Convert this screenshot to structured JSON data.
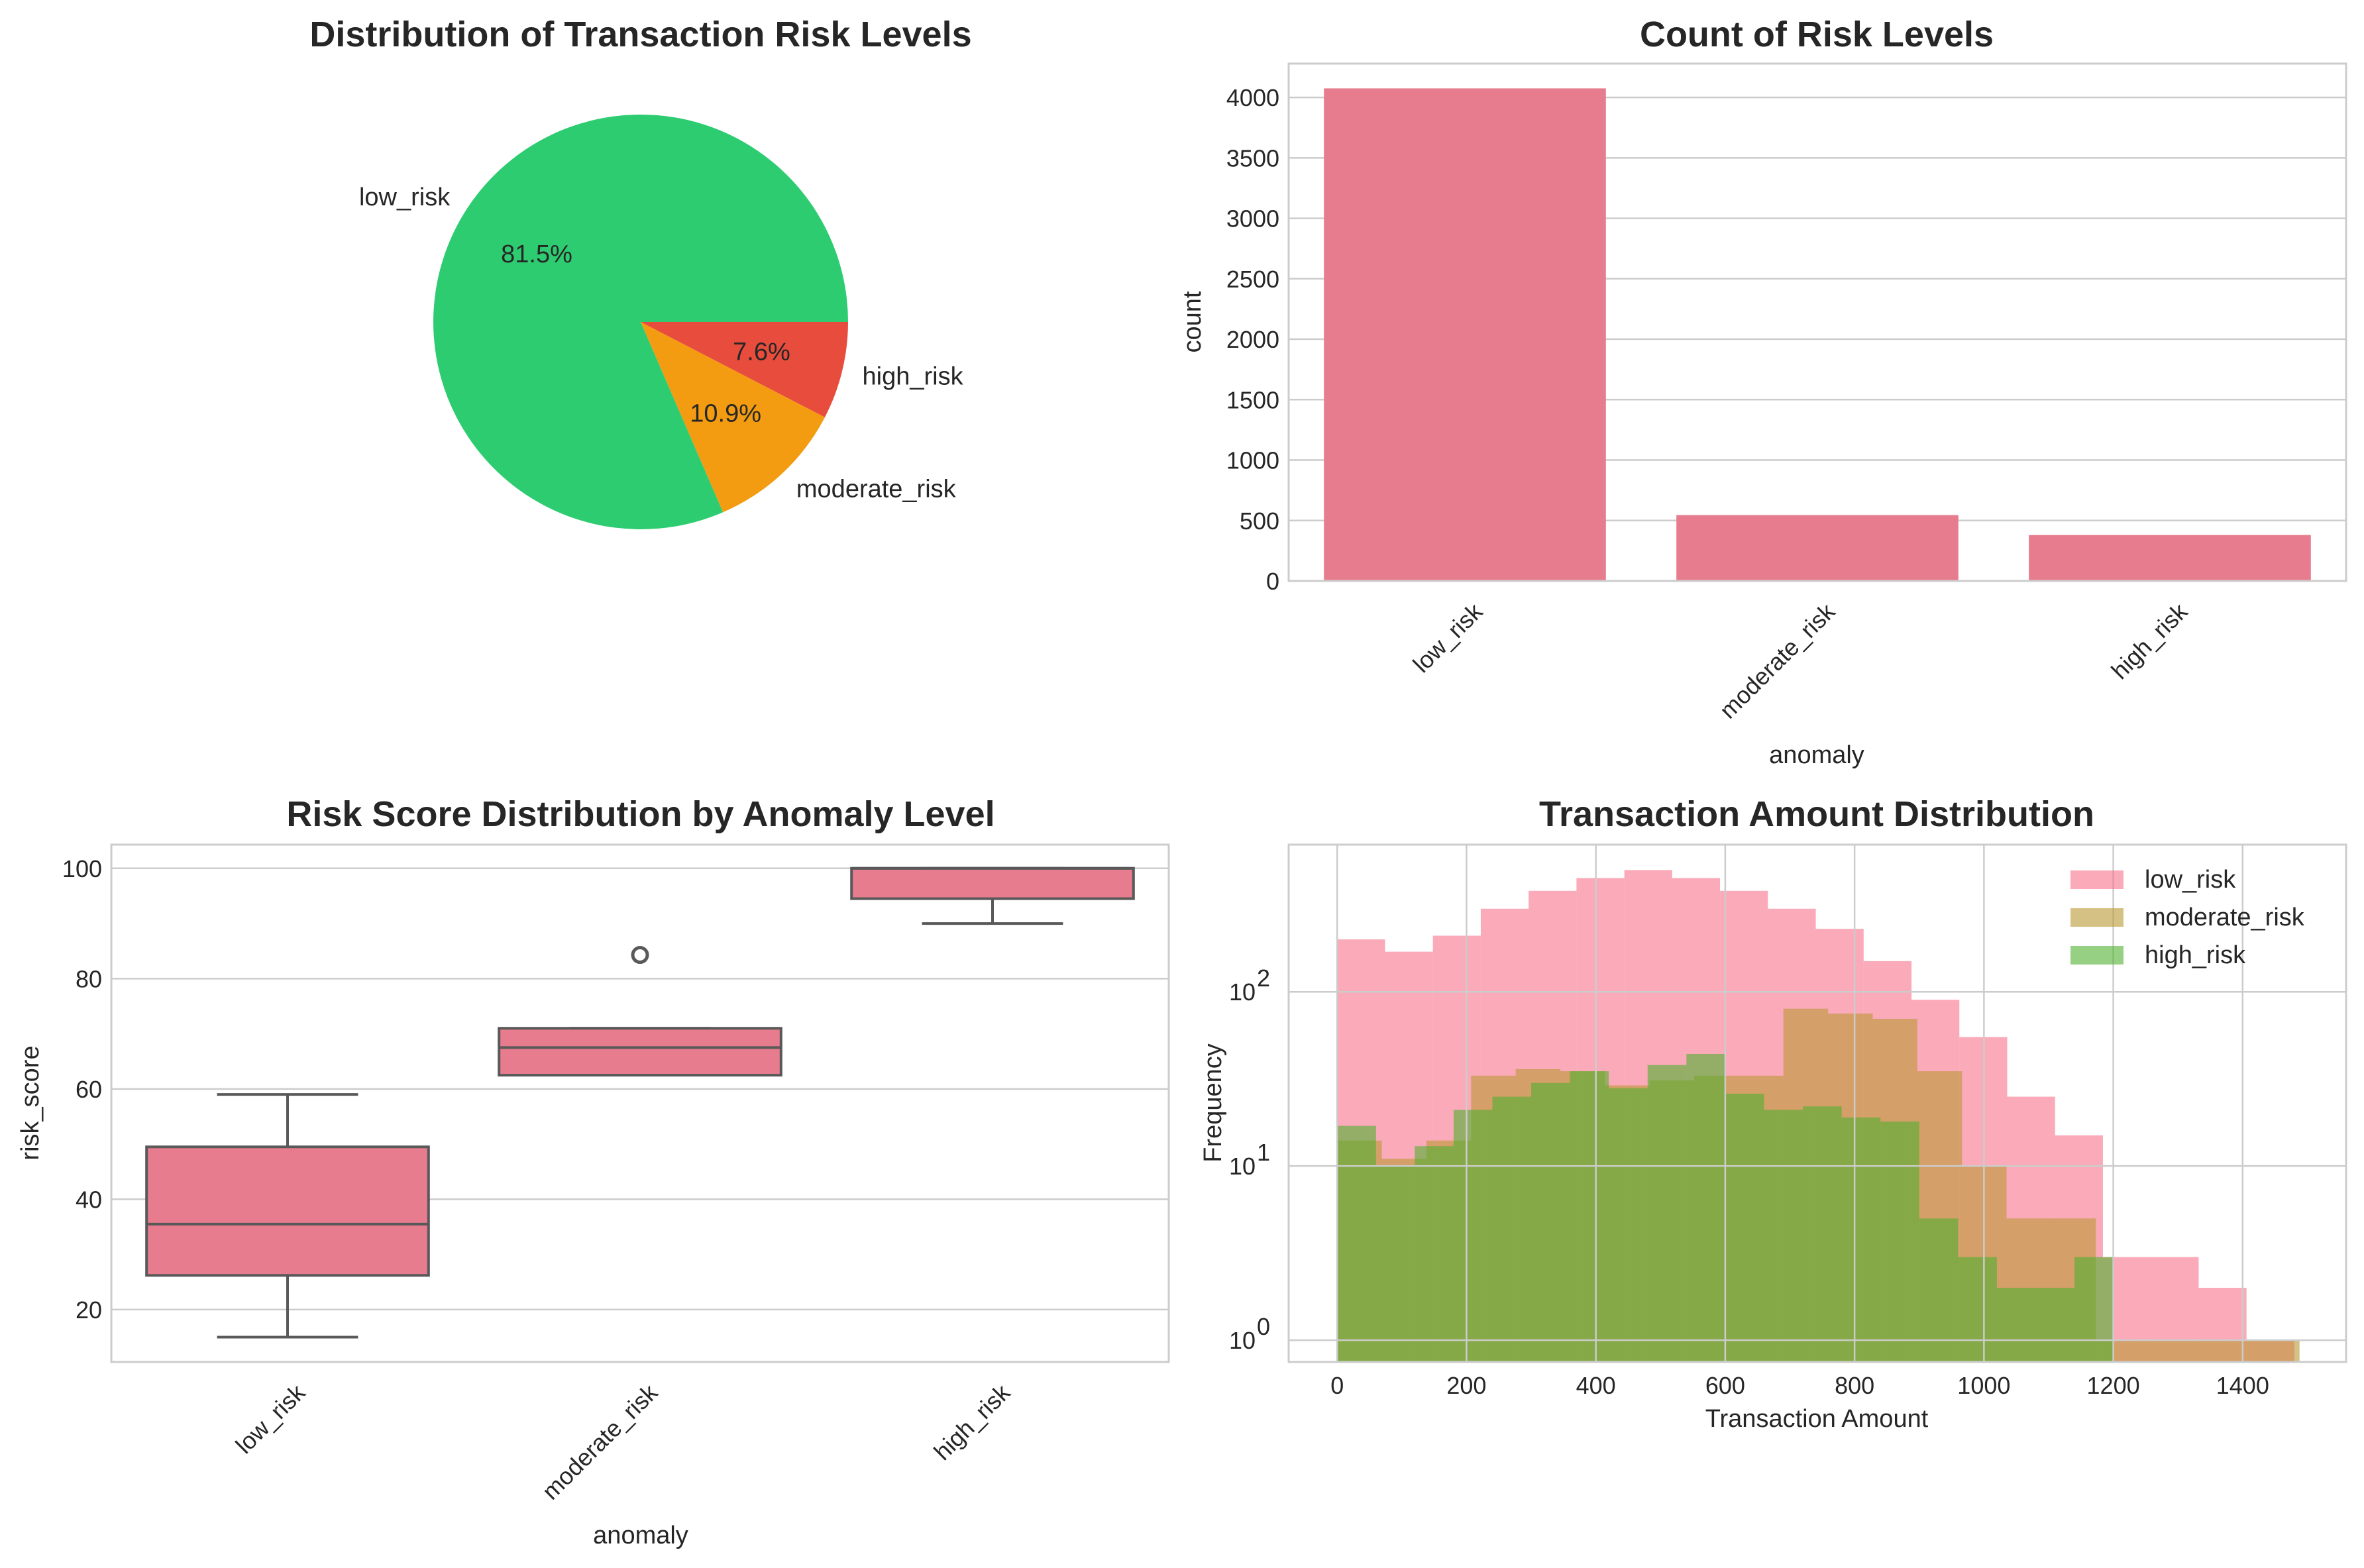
{
  "chart_data": [
    {
      "type": "pie",
      "title": "Distribution of Transaction Risk Levels",
      "slices": [
        {
          "label": "low_risk",
          "value": 81.5,
          "pct_label": "81.5%",
          "color": "#2ecc71"
        },
        {
          "label": "moderate_risk",
          "value": 10.9,
          "pct_label": "10.9%",
          "color": "#f39c12"
        },
        {
          "label": "high_risk",
          "value": 7.6,
          "pct_label": "7.6%",
          "color": "#e74c3c"
        }
      ]
    },
    {
      "type": "bar",
      "title": "Count of Risk Levels",
      "categories": [
        "low_risk",
        "moderate_risk",
        "high_risk"
      ],
      "values": [
        4075,
        545,
        380
      ],
      "xlabel": "anomaly",
      "ylabel": "count",
      "ylim": [
        0,
        4280
      ],
      "yticks": [
        0,
        500,
        1000,
        1500,
        2000,
        2500,
        3000,
        3500,
        4000
      ],
      "color": "#e77c8e",
      "grid": "y"
    },
    {
      "type": "box",
      "title": "Risk Score Distribution by Anomaly Level",
      "categories": [
        "low_risk",
        "moderate_risk",
        "high_risk"
      ],
      "boxes": [
        {
          "whislo": 15,
          "q1": 26.2,
          "med": 35.5,
          "q3": 49.5,
          "whishi": 59,
          "fliers": []
        },
        {
          "whislo": 62.5,
          "q1": 62.5,
          "med": 67.5,
          "q3": 71,
          "whishi": 71,
          "fliers": [
            84.3
          ]
        },
        {
          "whislo": 90,
          "q1": 94.5,
          "med": 100,
          "q3": 100,
          "whishi": 100,
          "fliers": []
        }
      ],
      "xlabel": "anomaly",
      "ylabel": "risk_score",
      "ylim": [
        10.5,
        104.3
      ],
      "yticks": [
        20,
        40,
        60,
        80,
        100
      ],
      "color": "#e77c8e",
      "grid": "y"
    },
    {
      "type": "histogram",
      "title": "Transaction Amount Distribution",
      "xlabel": "Transaction Amount",
      "ylabel": "Frequency",
      "xlim": [
        -75,
        1560
      ],
      "xticks": [
        0,
        200,
        400,
        600,
        800,
        1000,
        1200,
        1400
      ],
      "yscale": "log",
      "ylim": [
        0.75,
        700
      ],
      "yticks": [
        {
          "value": 1,
          "label": "10",
          "exp": "0"
        },
        {
          "value": 10,
          "label": "10",
          "exp": "1"
        },
        {
          "value": 100,
          "label": "10",
          "exp": "2"
        }
      ],
      "grid": "both",
      "legend_position": "top-right",
      "series": [
        {
          "name": "low_risk",
          "color": "#f77189",
          "opacity": 0.6,
          "bin_edges": [
            0,
            74,
            148,
            222,
            296,
            370,
            444,
            518,
            592,
            666,
            740,
            814,
            888,
            962,
            1036,
            1110,
            1184,
            1258,
            1332,
            1406,
            1480
          ],
          "counts": [
            200,
            170,
            210,
            300,
            380,
            450,
            500,
            450,
            380,
            300,
            230,
            150,
            90,
            55,
            25,
            15,
            3,
            3,
            2,
            1
          ]
        },
        {
          "name": "moderate_risk",
          "color": "#bb9832",
          "opacity": 0.6,
          "bin_edges": [
            0,
            69,
            138,
            207,
            276,
            345,
            414,
            483,
            552,
            621,
            690,
            759,
            828,
            897,
            966,
            1035,
            1104,
            1173,
            1242,
            1311,
            1380,
            1449,
            1488
          ],
          "counts": [
            14,
            11,
            14,
            33,
            36,
            35,
            29,
            31,
            33,
            33,
            80,
            75,
            70,
            35,
            10,
            5,
            5,
            1,
            1,
            1,
            1,
            1
          ]
        },
        {
          "name": "high_risk",
          "color": "#50b131",
          "opacity": 0.6,
          "bin_edges": [
            0,
            60,
            120,
            180,
            240,
            300,
            360,
            420,
            480,
            540,
            600,
            660,
            720,
            780,
            840,
            900,
            960,
            1020,
            1080,
            1140,
            1200
          ],
          "counts": [
            17,
            10,
            13,
            21,
            25,
            30,
            35,
            28,
            38,
            44,
            26,
            21,
            22,
            19,
            18,
            5,
            3,
            2,
            2,
            3
          ]
        }
      ]
    }
  ]
}
